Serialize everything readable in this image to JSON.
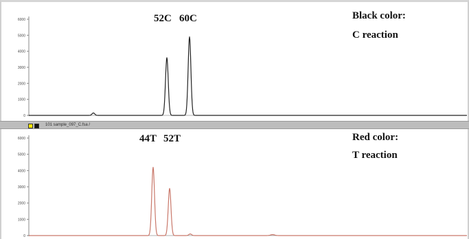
{
  "chart_data": [
    {
      "type": "line",
      "title": "",
      "xlabel": "",
      "ylabel": "",
      "ylim": [
        0,
        6000
      ],
      "yticks": [
        0,
        1000,
        2000,
        3000,
        4000,
        5000,
        6000
      ],
      "ytick_labels": [
        "0",
        "1000",
        "2000",
        "3000",
        "4000",
        "5000",
        "6000"
      ],
      "grid": false,
      "series": [
        {
          "color": "#222222",
          "peaks": [
            {
              "x": 134,
              "height": 150,
              "width": 2
            },
            {
              "x": 241,
              "height": 3600,
              "width": 2
            },
            {
              "x": 274,
              "height": 4900,
              "width": 2
            }
          ]
        }
      ],
      "peak_labels": [
        "52C",
        "60C"
      ],
      "legend": [
        "Black color:",
        "C reaction"
      ]
    },
    {
      "type": "line",
      "title": "",
      "xlabel": "",
      "ylabel": "",
      "ylim": [
        0,
        6000
      ],
      "yticks": [
        0,
        1000,
        2000,
        3000,
        4000,
        5000,
        6000
      ],
      "ytick_labels": [
        "0",
        "1000",
        "2000",
        "3000",
        "4000",
        "5000",
        "6000"
      ],
      "grid": false,
      "series": [
        {
          "color": "#c9786a",
          "peaks": [
            {
              "x": 221,
              "height": 4200,
              "width": 2
            },
            {
              "x": 245,
              "height": 2900,
              "width": 2
            },
            {
              "x": 275,
              "height": 100,
              "width": 2
            },
            {
              "x": 395,
              "height": 60,
              "width": 3
            }
          ]
        }
      ],
      "peak_labels": [
        "44T",
        "52T"
      ],
      "legend": [
        "Red color:",
        "T reaction"
      ]
    }
  ],
  "separator": {
    "text": "101 sample_097_C.fsa /",
    "icon_yellow": "yellow-square-icon",
    "icon_black": "black-square-icon"
  }
}
